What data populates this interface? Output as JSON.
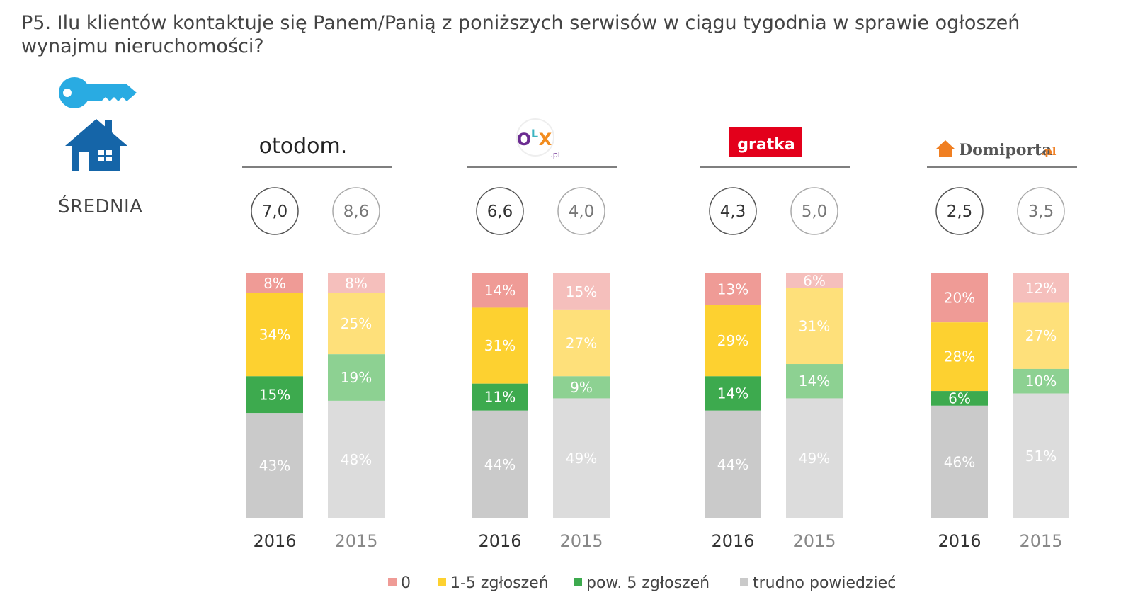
{
  "title": "P5. Ilu klientów kontaktuje się Panem/Panią z poniższych serwisów w ciągu tygodnia w sprawie ogłoszeń wynajmu nieruchomości?",
  "average_label": "ŚREDNIA",
  "icons": {
    "key": "key-icon",
    "house": "house-icon"
  },
  "colors": {
    "key_icon": "#29ABE2",
    "house_icon": "#1565A8"
  },
  "logos": {
    "otodom": {
      "text": "otodom."
    },
    "olx": {
      "o": "O",
      "l": "L",
      "x": "X",
      "suffix": ".pl"
    },
    "gratka": {
      "text": "gratka",
      "color": "#E3001B"
    },
    "domiporta": {
      "text": "Domiporta",
      "suffix": ".pl",
      "color": "#F07F22"
    }
  },
  "chart_data": {
    "type": "bar",
    "stacked": true,
    "percent": true,
    "title": "P5. Ilu klientów kontaktuje się Panem/Panią z poniższych serwisów w ciągu tygodnia w sprawie ogłoszeń wynajmu nieruchomości?",
    "categories": [
      "0",
      "1-5 zgłoszeń",
      "pow. 5 zgłoszeń",
      "trudno powiedzieć"
    ],
    "category_colors": {
      "2016": [
        "#EF9B96",
        "#FDD130",
        "#3DAA4E",
        "#CACACA"
      ],
      "2015": [
        "#F5BFBC",
        "#FEE07A",
        "#8DD192",
        "#DCDCDC"
      ]
    },
    "groups": [
      {
        "service": "otodom",
        "bars": [
          {
            "year": "2016",
            "average": "7,0",
            "values": [
              8,
              34,
              15,
              43
            ]
          },
          {
            "year": "2015",
            "average": "8,6",
            "values": [
              8,
              25,
              19,
              48
            ]
          }
        ]
      },
      {
        "service": "OLX.pl",
        "bars": [
          {
            "year": "2016",
            "average": "6,6",
            "values": [
              14,
              31,
              11,
              44
            ]
          },
          {
            "year": "2015",
            "average": "4,0",
            "values": [
              15,
              27,
              9,
              49
            ]
          }
        ]
      },
      {
        "service": "gratka",
        "bars": [
          {
            "year": "2016",
            "average": "4,3",
            "values": [
              13,
              29,
              14,
              44
            ]
          },
          {
            "year": "2015",
            "average": "5,0",
            "values": [
              6,
              31,
              14,
              49
            ]
          }
        ]
      },
      {
        "service": "Domiporta.pl",
        "bars": [
          {
            "year": "2016",
            "average": "2,5",
            "values": [
              20,
              28,
              6,
              46
            ]
          },
          {
            "year": "2015",
            "average": "3,5",
            "values": [
              12,
              27,
              10,
              51
            ]
          }
        ]
      }
    ],
    "legend": [
      "0",
      "1-5 zgłoszeń",
      "pow. 5 zgłoszeń",
      "trudno powiedzieć"
    ],
    "legend_position": "bottom-center",
    "grid": false
  }
}
